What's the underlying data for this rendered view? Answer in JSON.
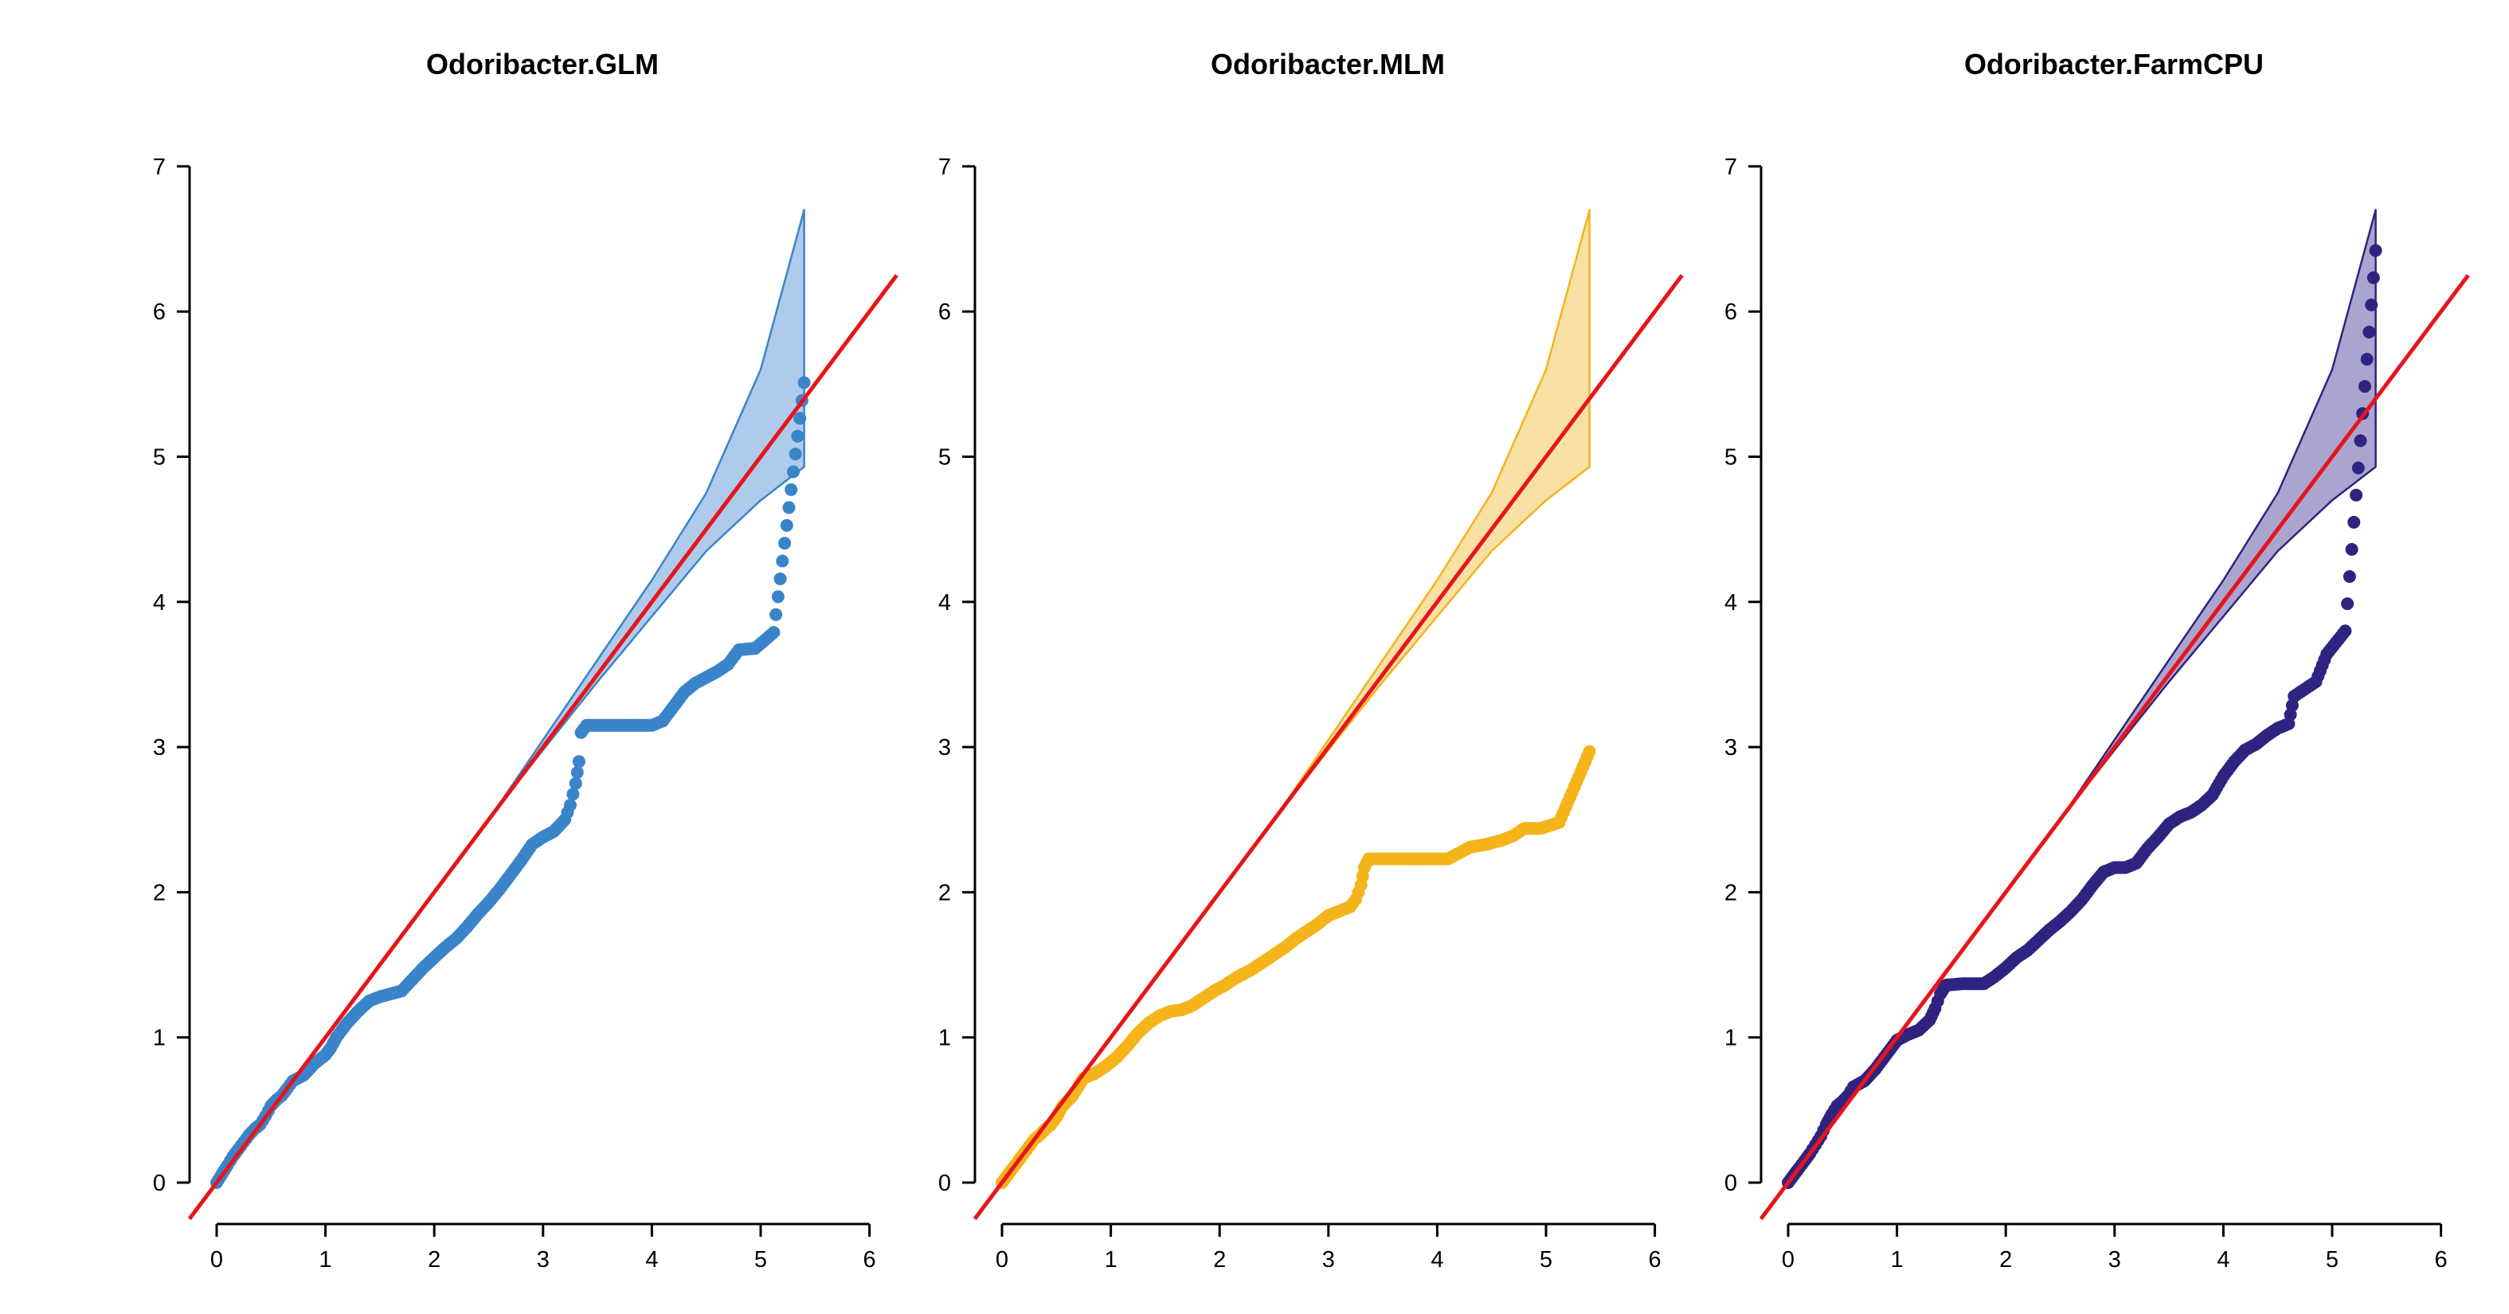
{
  "chart_data": [
    {
      "type": "scatter",
      "title": "Odoribacter.GLM",
      "xlabel": "",
      "ylabel": "",
      "xlim": [
        0,
        6
      ],
      "ylim": [
        0,
        7
      ],
      "xticks": [
        0,
        1,
        2,
        3,
        4,
        5,
        6
      ],
      "yticks": [
        0,
        1,
        2,
        3,
        4,
        5,
        6,
        7
      ],
      "grid": false,
      "color": "#3a84c9",
      "band_fill": "#aecbec",
      "diagonal_color": "#e8141a",
      "series": [
        {
          "points": [
            [
              0,
              0
            ],
            [
              0.05,
              0.06
            ],
            [
              0.1,
              0.12
            ],
            [
              0.15,
              0.18
            ],
            [
              0.2,
              0.23
            ],
            [
              0.25,
              0.28
            ],
            [
              0.3,
              0.33
            ],
            [
              0.35,
              0.37
            ],
            [
              0.4,
              0.4
            ],
            [
              0.45,
              0.46
            ],
            [
              0.5,
              0.53
            ],
            [
              0.55,
              0.57
            ],
            [
              0.6,
              0.6
            ],
            [
              0.65,
              0.65
            ],
            [
              0.7,
              0.7
            ],
            [
              0.8,
              0.74
            ],
            [
              0.9,
              0.82
            ],
            [
              1.0,
              0.88
            ],
            [
              1.05,
              0.93
            ],
            [
              1.1,
              1.0
            ],
            [
              1.15,
              1.05
            ],
            [
              1.2,
              1.1
            ],
            [
              1.3,
              1.18
            ],
            [
              1.4,
              1.25
            ],
            [
              1.5,
              1.28
            ],
            [
              1.6,
              1.3
            ],
            [
              1.7,
              1.32
            ],
            [
              1.8,
              1.4
            ],
            [
              1.9,
              1.48
            ],
            [
              2.0,
              1.55
            ],
            [
              2.1,
              1.62
            ],
            [
              2.2,
              1.68
            ],
            [
              2.3,
              1.76
            ],
            [
              2.4,
              1.85
            ],
            [
              2.5,
              1.93
            ],
            [
              2.6,
              2.02
            ],
            [
              2.7,
              2.12
            ],
            [
              2.8,
              2.22
            ],
            [
              2.9,
              2.33
            ],
            [
              3.0,
              2.38
            ],
            [
              3.1,
              2.42
            ],
            [
              3.2,
              2.5
            ],
            [
              3.25,
              2.6
            ],
            [
              3.3,
              2.75
            ],
            [
              3.33,
              2.9
            ],
            [
              3.35,
              3.1
            ],
            [
              3.4,
              3.15
            ],
            [
              3.6,
              3.15
            ],
            [
              3.8,
              3.15
            ],
            [
              4.0,
              3.15
            ],
            [
              4.1,
              3.18
            ],
            [
              4.2,
              3.28
            ],
            [
              4.3,
              3.38
            ],
            [
              4.4,
              3.44
            ],
            [
              4.5,
              3.48
            ],
            [
              4.6,
              3.52
            ],
            [
              4.7,
              3.57
            ],
            [
              4.8,
              3.67
            ],
            [
              4.95,
              3.68
            ],
            [
              5.12,
              3.79
            ],
            [
              5.4,
              5.51
            ]
          ]
        }
      ],
      "band": {
        "x": [
          0,
          1,
          2,
          2.5,
          3,
          3.5,
          4,
          4.5,
          5,
          5.4
        ],
        "upper": [
          0,
          1,
          2,
          2.5,
          3.05,
          3.6,
          4.15,
          4.75,
          5.6,
          6.7
        ],
        "lower": [
          0,
          1,
          2,
          2.5,
          2.98,
          3.45,
          3.9,
          4.35,
          4.7,
          4.93
        ]
      }
    },
    {
      "type": "scatter",
      "title": "Odoribacter.MLM",
      "xlabel": "",
      "ylabel": "",
      "xlim": [
        0,
        6
      ],
      "ylim": [
        0,
        7
      ],
      "xticks": [
        0,
        1,
        2,
        3,
        4,
        5,
        6
      ],
      "yticks": [
        0,
        1,
        2,
        3,
        4,
        5,
        6,
        7
      ],
      "grid": false,
      "color": "#f4b41a",
      "band_fill": "#f9e1a5",
      "diagonal_color": "#e8141a",
      "series": [
        {
          "points": [
            [
              0,
              0
            ],
            [
              0.05,
              0.05
            ],
            [
              0.1,
              0.1
            ],
            [
              0.15,
              0.15
            ],
            [
              0.2,
              0.2
            ],
            [
              0.25,
              0.25
            ],
            [
              0.3,
              0.3
            ],
            [
              0.35,
              0.33
            ],
            [
              0.4,
              0.37
            ],
            [
              0.45,
              0.4
            ],
            [
              0.5,
              0.45
            ],
            [
              0.55,
              0.52
            ],
            [
              0.6,
              0.56
            ],
            [
              0.65,
              0.6
            ],
            [
              0.7,
              0.66
            ],
            [
              0.75,
              0.72
            ],
            [
              0.85,
              0.75
            ],
            [
              0.95,
              0.8
            ],
            [
              1.05,
              0.86
            ],
            [
              1.15,
              0.94
            ],
            [
              1.25,
              1.03
            ],
            [
              1.35,
              1.1
            ],
            [
              1.45,
              1.15
            ],
            [
              1.55,
              1.18
            ],
            [
              1.65,
              1.19
            ],
            [
              1.75,
              1.22
            ],
            [
              1.85,
              1.27
            ],
            [
              1.95,
              1.32
            ],
            [
              2.05,
              1.36
            ],
            [
              2.15,
              1.41
            ],
            [
              2.3,
              1.47
            ],
            [
              2.4,
              1.52
            ],
            [
              2.5,
              1.57
            ],
            [
              2.6,
              1.62
            ],
            [
              2.7,
              1.68
            ],
            [
              2.8,
              1.73
            ],
            [
              2.9,
              1.78
            ],
            [
              3.0,
              1.84
            ],
            [
              3.1,
              1.87
            ],
            [
              3.2,
              1.9
            ],
            [
              3.25,
              1.95
            ],
            [
              3.3,
              2.05
            ],
            [
              3.33,
              2.17
            ],
            [
              3.37,
              2.23
            ],
            [
              3.5,
              2.23
            ],
            [
              3.7,
              2.23
            ],
            [
              3.9,
              2.23
            ],
            [
              4.1,
              2.23
            ],
            [
              4.2,
              2.27
            ],
            [
              4.3,
              2.31
            ],
            [
              4.45,
              2.33
            ],
            [
              4.6,
              2.36
            ],
            [
              4.7,
              2.39
            ],
            [
              4.8,
              2.44
            ],
            [
              4.95,
              2.44
            ],
            [
              5.12,
              2.48
            ],
            [
              5.4,
              2.97
            ]
          ]
        }
      ],
      "band": {
        "x": [
          0,
          1,
          2,
          2.5,
          3,
          3.5,
          4,
          4.5,
          5,
          5.4
        ],
        "upper": [
          0,
          1,
          2,
          2.5,
          3.05,
          3.6,
          4.15,
          4.75,
          5.6,
          6.7
        ],
        "lower": [
          0,
          1,
          2,
          2.5,
          2.98,
          3.45,
          3.9,
          4.35,
          4.7,
          4.93
        ]
      }
    },
    {
      "type": "scatter",
      "title": "Odoribacter.FarmCPU",
      "xlabel": "",
      "ylabel": "",
      "xlim": [
        0,
        6
      ],
      "ylim": [
        0,
        7
      ],
      "xticks": [
        0,
        1,
        2,
        3,
        4,
        5,
        6
      ],
      "yticks": [
        0,
        1,
        2,
        3,
        4,
        5,
        6,
        7
      ],
      "grid": false,
      "color": "#2e2480",
      "band_fill": "#aaa5cf",
      "diagonal_color": "#e8141a",
      "series": [
        {
          "points": [
            [
              0,
              0
            ],
            [
              0.05,
              0.05
            ],
            [
              0.1,
              0.1
            ],
            [
              0.15,
              0.15
            ],
            [
              0.2,
              0.2
            ],
            [
              0.25,
              0.26
            ],
            [
              0.3,
              0.32
            ],
            [
              0.35,
              0.4
            ],
            [
              0.4,
              0.47
            ],
            [
              0.45,
              0.53
            ],
            [
              0.5,
              0.56
            ],
            [
              0.55,
              0.6
            ],
            [
              0.6,
              0.66
            ],
            [
              0.7,
              0.7
            ],
            [
              0.8,
              0.78
            ],
            [
              0.9,
              0.88
            ],
            [
              1.0,
              0.98
            ],
            [
              1.1,
              1.02
            ],
            [
              1.2,
              1.05
            ],
            [
              1.3,
              1.12
            ],
            [
              1.35,
              1.2
            ],
            [
              1.4,
              1.3
            ],
            [
              1.45,
              1.36
            ],
            [
              1.6,
              1.37
            ],
            [
              1.8,
              1.37
            ],
            [
              1.9,
              1.42
            ],
            [
              2.0,
              1.48
            ],
            [
              2.1,
              1.55
            ],
            [
              2.2,
              1.6
            ],
            [
              2.3,
              1.67
            ],
            [
              2.4,
              1.74
            ],
            [
              2.5,
              1.8
            ],
            [
              2.6,
              1.87
            ],
            [
              2.7,
              1.95
            ],
            [
              2.8,
              2.05
            ],
            [
              2.9,
              2.14
            ],
            [
              3.0,
              2.17
            ],
            [
              3.1,
              2.17
            ],
            [
              3.2,
              2.2
            ],
            [
              3.3,
              2.3
            ],
            [
              3.4,
              2.38
            ],
            [
              3.5,
              2.47
            ],
            [
              3.6,
              2.52
            ],
            [
              3.7,
              2.55
            ],
            [
              3.8,
              2.6
            ],
            [
              3.9,
              2.67
            ],
            [
              4.0,
              2.8
            ],
            [
              4.1,
              2.9
            ],
            [
              4.2,
              2.98
            ],
            [
              4.3,
              3.02
            ],
            [
              4.4,
              3.08
            ],
            [
              4.5,
              3.13
            ],
            [
              4.6,
              3.16
            ],
            [
              4.65,
              3.35
            ],
            [
              4.75,
              3.4
            ],
            [
              4.85,
              3.45
            ],
            [
              4.95,
              3.64
            ],
            [
              5.12,
              3.8
            ],
            [
              5.4,
              6.42
            ]
          ]
        }
      ],
      "band": {
        "x": [
          0,
          1,
          2,
          2.5,
          3,
          3.5,
          4,
          4.5,
          5,
          5.4
        ],
        "upper": [
          0,
          1,
          2,
          2.5,
          3.05,
          3.6,
          4.15,
          4.75,
          5.6,
          6.7
        ],
        "lower": [
          0,
          1,
          2,
          2.5,
          2.98,
          3.45,
          3.9,
          4.35,
          4.7,
          4.93
        ]
      }
    }
  ]
}
